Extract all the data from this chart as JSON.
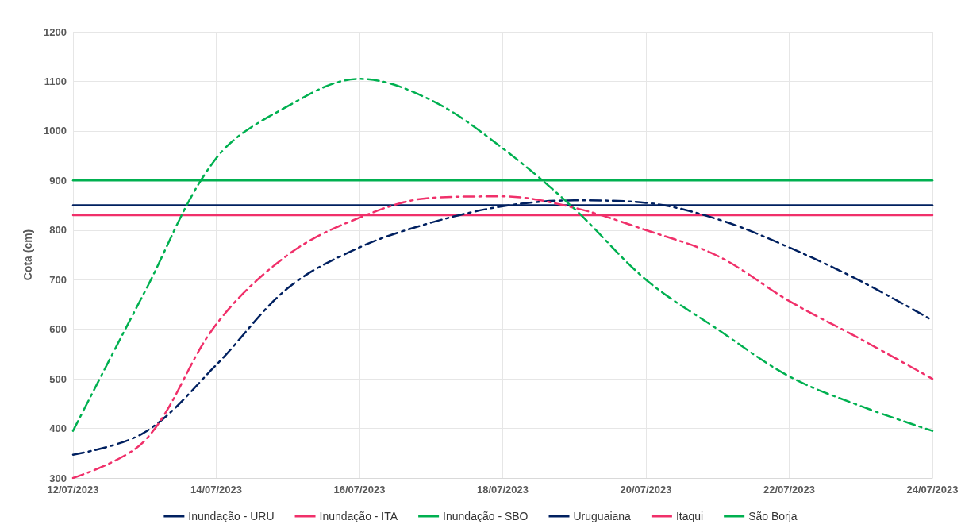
{
  "chart_data": {
    "type": "line",
    "ylabel": "Cota (cm)",
    "series": [
      {
        "name": "Inundação - URU",
        "color": "#002060",
        "line_style": "solid",
        "x": [
          "2023-07-12",
          "2023-07-24"
        ],
        "values": [
          850,
          850
        ]
      },
      {
        "name": "Inundação - ITA",
        "color": "#f0306a",
        "line_style": "solid",
        "x": [
          "2023-07-12",
          "2023-07-24"
        ],
        "values": [
          830,
          830
        ]
      },
      {
        "name": "Inundação - SBO",
        "color": "#00b050",
        "line_style": "solid",
        "x": [
          "2023-07-12",
          "2023-07-24"
        ],
        "values": [
          900,
          900
        ]
      },
      {
        "name": "Uruguaiana",
        "color": "#002060",
        "line_style": "dashed",
        "x": [
          "2023-07-12",
          "2023-07-13",
          "2023-07-14",
          "2023-07-15",
          "2023-07-16",
          "2023-07-17",
          "2023-07-18",
          "2023-07-19",
          "2023-07-20",
          "2023-07-21",
          "2023-07-22",
          "2023-07-23",
          "2023-07-24"
        ],
        "values": [
          347,
          392,
          528,
          683,
          765,
          815,
          848,
          860,
          855,
          822,
          765,
          697,
          618
        ]
      },
      {
        "name": "Itaqui",
        "color": "#f0306a",
        "line_style": "dashed",
        "x": [
          "2023-07-12",
          "2023-07-13",
          "2023-07-14",
          "2023-07-15",
          "2023-07-16",
          "2023-07-17",
          "2023-07-18",
          "2023-07-19",
          "2023-07-20",
          "2023-07-21",
          "2023-07-22",
          "2023-07-23",
          "2023-07-24"
        ],
        "values": [
          300,
          375,
          610,
          750,
          825,
          865,
          868,
          845,
          800,
          748,
          657,
          580,
          500
        ]
      },
      {
        "name": "São Borja",
        "color": "#00b050",
        "line_style": "dashed",
        "x": [
          "2023-07-12",
          "2023-07-13",
          "2023-07-14",
          "2023-07-15",
          "2023-07-16",
          "2023-07-17",
          "2023-07-18",
          "2023-07-19",
          "2023-07-20",
          "2023-07-21",
          "2023-07-22",
          "2023-07-23",
          "2023-07-24"
        ],
        "values": [
          395,
          675,
          945,
          1050,
          1105,
          1062,
          965,
          843,
          700,
          600,
          505,
          445,
          395
        ]
      }
    ],
    "xlim": [
      "2023-07-12",
      "2023-07-24"
    ],
    "xticks": [
      {
        "value": "2023-07-12",
        "label": "12/07/2023"
      },
      {
        "value": "2023-07-14",
        "label": "14/07/2023"
      },
      {
        "value": "2023-07-16",
        "label": "16/07/2023"
      },
      {
        "value": "2023-07-18",
        "label": "18/07/2023"
      },
      {
        "value": "2023-07-20",
        "label": "20/07/2023"
      },
      {
        "value": "2023-07-22",
        "label": "22/07/2023"
      },
      {
        "value": "2023-07-24",
        "label": "24/07/2023"
      }
    ],
    "ylim": [
      300,
      1200
    ],
    "yticks": [
      300,
      400,
      500,
      600,
      700,
      800,
      900,
      1000,
      1100,
      1200
    ],
    "grid": true,
    "legend": "bottom",
    "marker": "none"
  }
}
